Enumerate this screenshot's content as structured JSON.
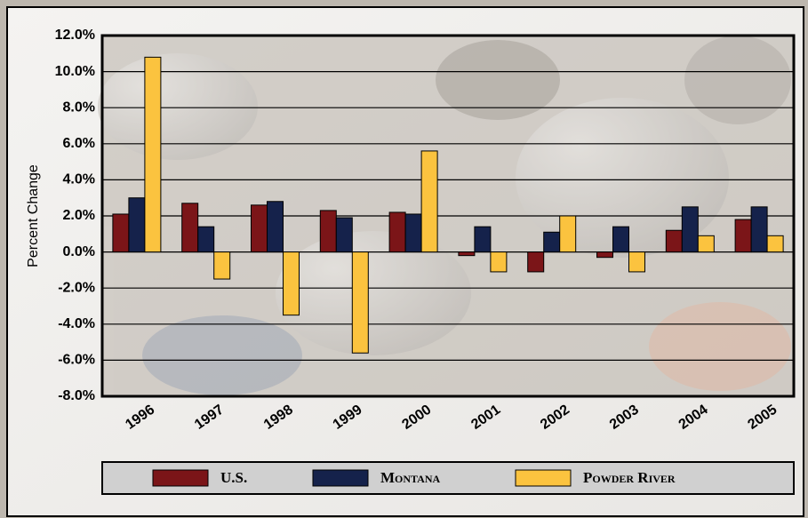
{
  "chart_data": {
    "type": "bar",
    "y_label": "Percent Change",
    "categories": [
      "1996",
      "1997",
      "1998",
      "1999",
      "2000",
      "2001",
      "2002",
      "2003",
      "2004",
      "2005"
    ],
    "series": [
      {
        "name": "U.S.",
        "color": "#7b1518",
        "values": [
          2.1,
          2.7,
          2.6,
          2.3,
          2.2,
          -0.2,
          -1.1,
          -0.3,
          1.2,
          1.8
        ]
      },
      {
        "name": "Montana",
        "color": "#15224b",
        "values": [
          3.0,
          1.4,
          2.8,
          1.9,
          2.1,
          1.4,
          1.1,
          1.4,
          2.5,
          2.5
        ]
      },
      {
        "name": "Powder River",
        "color": "#fbc33f",
        "values": [
          10.8,
          -1.5,
          -3.5,
          -5.6,
          5.6,
          -1.1,
          2.0,
          -1.1,
          0.9,
          0.9
        ]
      }
    ],
    "ylim": [
      -8,
      12
    ],
    "yticks": [
      {
        "value": -8,
        "label": "-8.0%"
      },
      {
        "value": -6,
        "label": "-6.0%"
      },
      {
        "value": -4,
        "label": "-4.0%"
      },
      {
        "value": -2,
        "label": "-2.0%"
      },
      {
        "value": 0,
        "label": "0.0%"
      },
      {
        "value": 2,
        "label": "2.0%"
      },
      {
        "value": 4,
        "label": "4.0%"
      },
      {
        "value": 6,
        "label": "6.0%"
      },
      {
        "value": 8,
        "label": "8.0%"
      },
      {
        "value": 10,
        "label": "10.0%"
      },
      {
        "value": 12,
        "label": "12.0%"
      }
    ],
    "grid": true
  }
}
